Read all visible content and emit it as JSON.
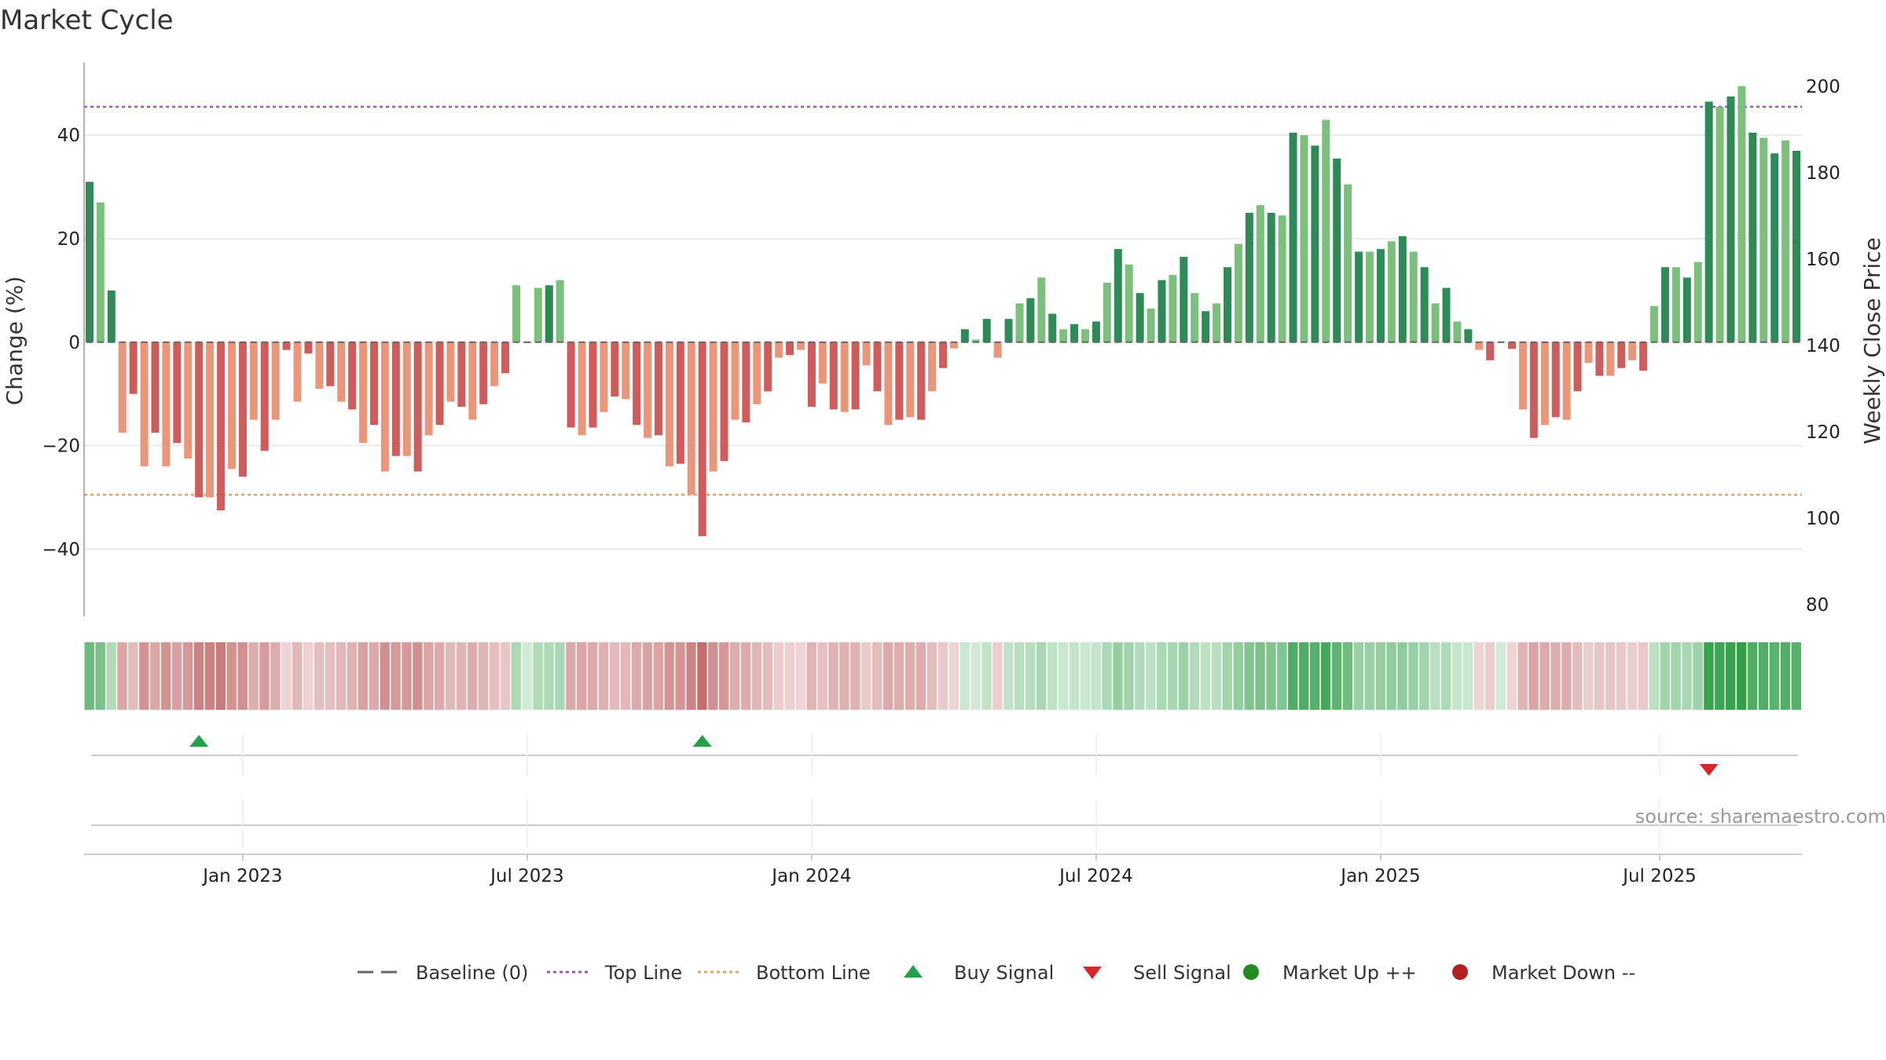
{
  "chart_data": {
    "type": "bar",
    "title": "Market Cycle",
    "ylabel": "Change (%)",
    "y2label": "Weekly Close Price",
    "ylim": [
      -53,
      54
    ],
    "y2lim": [
      80,
      200
    ],
    "yticks": [
      -40,
      -20,
      0,
      20,
      40
    ],
    "y2ticks": [
      80,
      100,
      120,
      140,
      160,
      180,
      200
    ],
    "xticks": [
      "Jan 2023",
      "Jul 2023",
      "Jan 2024",
      "Jul 2024",
      "Jan 2025",
      "Jul 2025"
    ],
    "top_line": 45.5,
    "bottom_line": -29.5,
    "grid": true,
    "colors": {
      "up_strong": "#2e8b57",
      "up_light": "#7dbf7d",
      "down_strong": "#cd5c5c",
      "down_light": "#e9967a",
      "top_line": "#9b59b6",
      "bottom_line": "#f0a060",
      "buy": "#22a04b",
      "sell": "#d62728",
      "market_up": "#228b22",
      "market_down": "#b22222"
    },
    "values": [
      31,
      27,
      10,
      -17.5,
      -10,
      -24,
      -17.5,
      -24,
      -19.5,
      -22.5,
      -30,
      -30,
      -32.5,
      -24.5,
      -26,
      -15,
      -21,
      -15,
      -1.5,
      -11.5,
      -2.2,
      -9,
      -8.5,
      -11.5,
      -13,
      -19.5,
      -16,
      -25,
      -22,
      -22,
      -25,
      -18,
      -16,
      -11.5,
      -12.5,
      -15,
      -12,
      -8.5,
      -6,
      11,
      0,
      10.5,
      11,
      12,
      -16.5,
      -18,
      -16.5,
      -13.5,
      -10.5,
      -11,
      -16,
      -18.5,
      -18,
      -24,
      -23.5,
      -29.5,
      -37.5,
      -25,
      -23,
      -15,
      -15.5,
      -12,
      -9.5,
      -3,
      -2.5,
      -1.5,
      -12.5,
      -8,
      -13,
      -13.5,
      -13,
      -4.5,
      -9.5,
      -16,
      -15,
      -14.5,
      -15,
      -9.5,
      -5,
      -1.2,
      2.5,
      0.5,
      4.5,
      -3,
      4.5,
      7.5,
      8.5,
      12.5,
      5.5,
      2.5,
      3.5,
      2.5,
      4,
      11.5,
      18,
      15,
      9.5,
      6.5,
      12,
      13,
      16.5,
      9.5,
      6,
      7.5,
      14.5,
      19,
      25,
      26.5,
      25,
      24.5,
      40.5,
      40,
      38,
      43,
      35.5,
      30.5,
      17.5,
      17.5,
      18,
      19.5,
      20.5,
      17.5,
      14.5,
      7.5,
      10.5,
      4,
      2.5,
      -1.5,
      -3.5,
      0,
      -1.3,
      -13,
      -18.5,
      -16,
      -14.5,
      -15,
      -9.5,
      -4,
      -6.5,
      -6.5,
      -5,
      -3.5,
      -5.5,
      7,
      14.5,
      14.5,
      12.5,
      15.5,
      46.5,
      45.5,
      47.5,
      49.5,
      40.5,
      39.5,
      36.5,
      39,
      37
    ],
    "signals": [
      {
        "type": "buy",
        "bar_index": 10
      },
      {
        "type": "buy",
        "bar_index": 56
      },
      {
        "type": "sell",
        "bar_index": 148
      }
    ]
  },
  "source": "source: sharemaestro.com",
  "legend": [
    {
      "label": "Baseline (0)",
      "key": "baseline",
      "icon": "dash-line"
    },
    {
      "label": "Top Line",
      "key": "top",
      "icon": "dotted-line"
    },
    {
      "label": "Bottom Line",
      "key": "bottom",
      "icon": "dotted-line"
    },
    {
      "label": "Buy Signal",
      "key": "buy",
      "icon": "triangle-up"
    },
    {
      "label": "Sell Signal",
      "key": "sell",
      "icon": "triangle-down"
    },
    {
      "label": "Market Up ++",
      "key": "market_up",
      "icon": "circle"
    },
    {
      "label": "Market Down --",
      "key": "market_down",
      "icon": "circle"
    }
  ]
}
